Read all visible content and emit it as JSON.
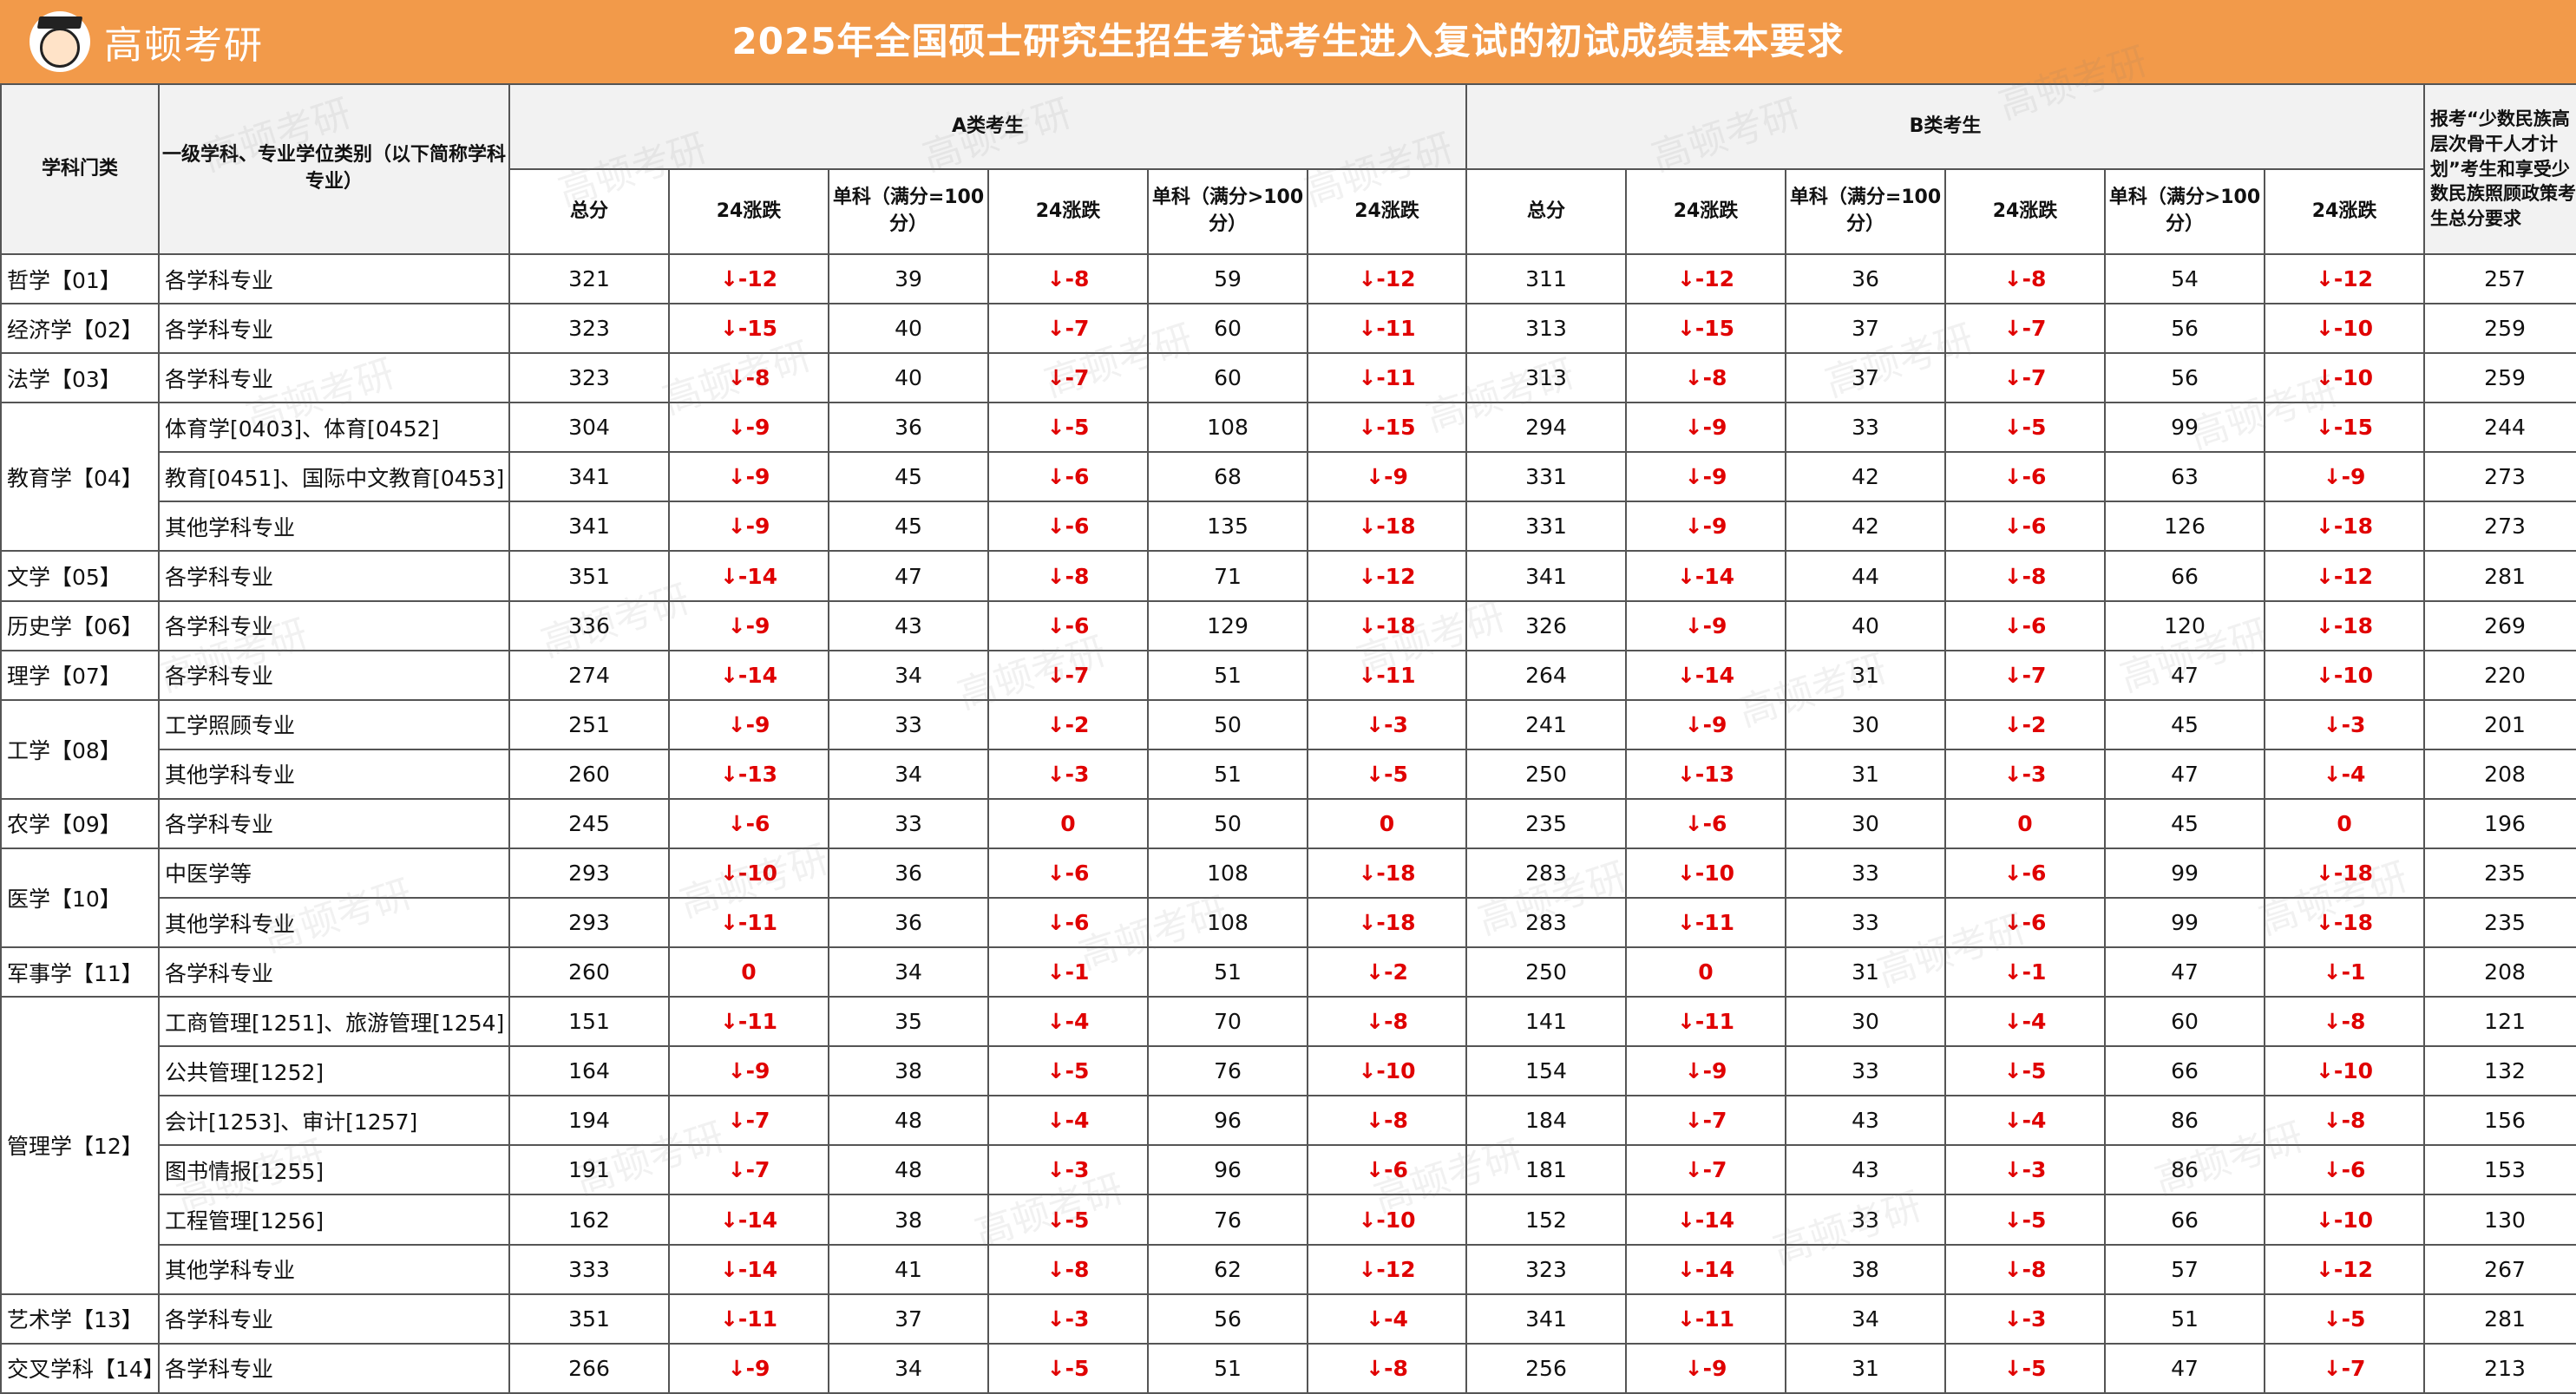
{
  "brand": {
    "name": "高顿考研"
  },
  "title": "2025年全国硕士研究生招生考试考生进入复试的初试成绩基本要求",
  "headers": {
    "discipline": "学科门类",
    "subject": "一级学科、专业学位类别（以下简称学科专业）",
    "groupA": "A类考生",
    "groupB": "B类考生",
    "note": "报考“少数民族高层次骨干人才计划”考生和享受少数民族照顾政策考生总分要求",
    "total": "总分",
    "change": "24涨跌",
    "single100": "单科（满分=100分）",
    "singleOver100": "单科（满分>100分）"
  },
  "watermark": "高顿考研",
  "rows": [
    {
      "cat": "哲学【01】",
      "span": 1,
      "subject": "各学科专业",
      "v": [
        "321",
        "↓-12",
        "39",
        "↓-8",
        "59",
        "↓-12",
        "311",
        "↓-12",
        "36",
        "↓-8",
        "54",
        "↓-12",
        "257"
      ]
    },
    {
      "cat": "经济学【02】",
      "span": 1,
      "subject": "各学科专业",
      "v": [
        "323",
        "↓-15",
        "40",
        "↓-7",
        "60",
        "↓-11",
        "313",
        "↓-15",
        "37",
        "↓-7",
        "56",
        "↓-10",
        "259"
      ]
    },
    {
      "cat": "法学【03】",
      "span": 1,
      "subject": "各学科专业",
      "v": [
        "323",
        "↓-8",
        "40",
        "↓-7",
        "60",
        "↓-11",
        "313",
        "↓-8",
        "37",
        "↓-7",
        "56",
        "↓-10",
        "259"
      ]
    },
    {
      "cat": "教育学【04】",
      "span": 3,
      "subject": "体育学[0403]、体育[0452]",
      "v": [
        "304",
        "↓-9",
        "36",
        "↓-5",
        "108",
        "↓-15",
        "294",
        "↓-9",
        "33",
        "↓-5",
        "99",
        "↓-15",
        "244"
      ]
    },
    {
      "cat": null,
      "subject": "教育[0451]、国际中文教育[0453]",
      "v": [
        "341",
        "↓-9",
        "45",
        "↓-6",
        "68",
        "↓-9",
        "331",
        "↓-9",
        "42",
        "↓-6",
        "63",
        "↓-9",
        "273"
      ]
    },
    {
      "cat": null,
      "subject": "其他学科专业",
      "v": [
        "341",
        "↓-9",
        "45",
        "↓-6",
        "135",
        "↓-18",
        "331",
        "↓-9",
        "42",
        "↓-6",
        "126",
        "↓-18",
        "273"
      ]
    },
    {
      "cat": "文学【05】",
      "span": 1,
      "subject": "各学科专业",
      "v": [
        "351",
        "↓-14",
        "47",
        "↓-8",
        "71",
        "↓-12",
        "341",
        "↓-14",
        "44",
        "↓-8",
        "66",
        "↓-12",
        "281"
      ]
    },
    {
      "cat": "历史学【06】",
      "span": 1,
      "subject": "各学科专业",
      "v": [
        "336",
        "↓-9",
        "43",
        "↓-6",
        "129",
        "↓-18",
        "326",
        "↓-9",
        "40",
        "↓-6",
        "120",
        "↓-18",
        "269"
      ]
    },
    {
      "cat": "理学【07】",
      "span": 1,
      "subject": "各学科专业",
      "v": [
        "274",
        "↓-14",
        "34",
        "↓-7",
        "51",
        "↓-11",
        "264",
        "↓-14",
        "31",
        "↓-7",
        "47",
        "↓-10",
        "220"
      ]
    },
    {
      "cat": "工学【08】",
      "span": 2,
      "subject": "工学照顾专业",
      "v": [
        "251",
        "↓-9",
        "33",
        "↓-2",
        "50",
        "↓-3",
        "241",
        "↓-9",
        "30",
        "↓-2",
        "45",
        "↓-3",
        "201"
      ]
    },
    {
      "cat": null,
      "subject": "其他学科专业",
      "v": [
        "260",
        "↓-13",
        "34",
        "↓-3",
        "51",
        "↓-5",
        "250",
        "↓-13",
        "31",
        "↓-3",
        "47",
        "↓-4",
        "208"
      ]
    },
    {
      "cat": "农学【09】",
      "span": 1,
      "subject": "各学科专业",
      "v": [
        "245",
        "↓-6",
        "33",
        "0",
        "50",
        "0",
        "235",
        "↓-6",
        "30",
        "0",
        "45",
        "0",
        "196"
      ]
    },
    {
      "cat": "医学【10】",
      "span": 2,
      "subject": "中医学等",
      "v": [
        "293",
        "↓-10",
        "36",
        "↓-6",
        "108",
        "↓-18",
        "283",
        "↓-10",
        "33",
        "↓-6",
        "99",
        "↓-18",
        "235"
      ]
    },
    {
      "cat": null,
      "subject": "其他学科专业",
      "v": [
        "293",
        "↓-11",
        "36",
        "↓-6",
        "108",
        "↓-18",
        "283",
        "↓-11",
        "33",
        "↓-6",
        "99",
        "↓-18",
        "235"
      ]
    },
    {
      "cat": "军事学【11】",
      "span": 1,
      "subject": "各学科专业",
      "v": [
        "260",
        "0",
        "34",
        "↓-1",
        "51",
        "↓-2",
        "250",
        "0",
        "31",
        "↓-1",
        "47",
        "↓-1",
        "208"
      ]
    },
    {
      "cat": "管理学【12】",
      "span": 6,
      "subject": "工商管理[1251]、旅游管理[1254]",
      "v": [
        "151",
        "↓-11",
        "35",
        "↓-4",
        "70",
        "↓-8",
        "141",
        "↓-11",
        "30",
        "↓-4",
        "60",
        "↓-8",
        "121"
      ]
    },
    {
      "cat": null,
      "subject": "公共管理[1252]",
      "v": [
        "164",
        "↓-9",
        "38",
        "↓-5",
        "76",
        "↓-10",
        "154",
        "↓-9",
        "33",
        "↓-5",
        "66",
        "↓-10",
        "132"
      ]
    },
    {
      "cat": null,
      "subject": "会计[1253]、审计[1257]",
      "v": [
        "194",
        "↓-7",
        "48",
        "↓-4",
        "96",
        "↓-8",
        "184",
        "↓-7",
        "43",
        "↓-4",
        "86",
        "↓-8",
        "156"
      ]
    },
    {
      "cat": null,
      "subject": "图书情报[1255]",
      "v": [
        "191",
        "↓-7",
        "48",
        "↓-3",
        "96",
        "↓-6",
        "181",
        "↓-7",
        "43",
        "↓-3",
        "86",
        "↓-6",
        "153"
      ]
    },
    {
      "cat": null,
      "subject": "工程管理[1256]",
      "v": [
        "162",
        "↓-14",
        "38",
        "↓-5",
        "76",
        "↓-10",
        "152",
        "↓-14",
        "33",
        "↓-5",
        "66",
        "↓-10",
        "130"
      ]
    },
    {
      "cat": null,
      "subject": "其他学科专业",
      "v": [
        "333",
        "↓-14",
        "41",
        "↓-8",
        "62",
        "↓-12",
        "323",
        "↓-14",
        "38",
        "↓-8",
        "57",
        "↓-12",
        "267"
      ]
    },
    {
      "cat": "艺术学【13】",
      "span": 1,
      "subject": "各学科专业",
      "v": [
        "351",
        "↓-11",
        "37",
        "↓-3",
        "56",
        "↓-4",
        "341",
        "↓-11",
        "34",
        "↓-3",
        "51",
        "↓-5",
        "281"
      ]
    },
    {
      "cat": "交叉学科【14】",
      "span": 1,
      "subject": "各学科专业",
      "v": [
        "266",
        "↓-9",
        "34",
        "↓-5",
        "51",
        "↓-8",
        "256",
        "↓-9",
        "31",
        "↓-5",
        "47",
        "↓-7",
        "213"
      ]
    }
  ]
}
